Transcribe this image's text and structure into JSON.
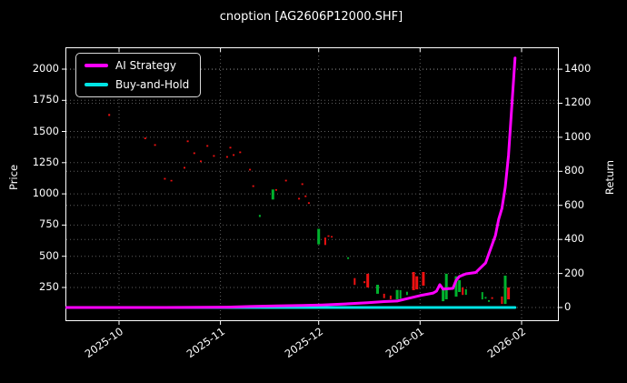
{
  "title": "cnoption [AG2606P12000.SHF]",
  "colors": {
    "background": "#000000",
    "text": "#ffffff",
    "spine": "#ffffff",
    "grid": "#bebebe",
    "strategy": "#ff00ff",
    "buy_hold": "#00e5e5",
    "up": "#00b22d",
    "down": "#ee1111"
  },
  "legend": {
    "items": [
      {
        "label": "AI Strategy",
        "color": "#ff00ff"
      },
      {
        "label": "Buy-and-Hold",
        "color": "#00e5e5"
      }
    ]
  },
  "axes": {
    "left_label": "Price",
    "right_label": "Return"
  },
  "chart_data": {
    "type": "line",
    "title": "cnoption [AG2606P12000.SHF]",
    "grid": true,
    "legend_position": "upper left",
    "x_axis": {
      "tick_labels": [
        "2025-10",
        "2025-11",
        "2025-12",
        "2026-01",
        "2026-02"
      ],
      "tick_dates": [
        "2025-10-01",
        "2025-11-01",
        "2025-12-01",
        "2026-01-01",
        "2026-02-01"
      ],
      "range": [
        "2025-09-15",
        "2026-02-12"
      ]
    },
    "y_left": {
      "label": "Price",
      "ticks": [
        250,
        500,
        750,
        1000,
        1250,
        1500,
        1750,
        2000
      ],
      "range": [
        -12,
        2170
      ]
    },
    "y_right": {
      "label": "Return",
      "ticks": [
        0,
        200,
        400,
        600,
        800,
        1000,
        1200,
        1400
      ],
      "range": [
        -80,
        1525
      ]
    },
    "series": [
      {
        "name": "AI Strategy",
        "axis": "right",
        "color": "#ff00ff",
        "points": [
          [
            "2025-09-15",
            0
          ],
          [
            "2025-10-15",
            0
          ],
          [
            "2025-11-03",
            2
          ],
          [
            "2025-11-10",
            6
          ],
          [
            "2025-11-18",
            9
          ],
          [
            "2025-11-26",
            12
          ],
          [
            "2025-12-02",
            15
          ],
          [
            "2025-12-09",
            21
          ],
          [
            "2025-12-16",
            28
          ],
          [
            "2025-12-21",
            35
          ],
          [
            "2025-12-25",
            38
          ],
          [
            "2025-12-28",
            52
          ],
          [
            "2026-01-01",
            70
          ],
          [
            "2026-01-05",
            85
          ],
          [
            "2026-01-06",
            96
          ],
          [
            "2026-01-07",
            134
          ],
          [
            "2026-01-08",
            108
          ],
          [
            "2026-01-11",
            112
          ],
          [
            "2026-01-12",
            160
          ],
          [
            "2026-01-13",
            182
          ],
          [
            "2026-01-15",
            198
          ],
          [
            "2026-01-18",
            206
          ],
          [
            "2026-01-19",
            225
          ],
          [
            "2026-01-21",
            262
          ],
          [
            "2026-01-22",
            316
          ],
          [
            "2026-01-24",
            423
          ],
          [
            "2026-01-25",
            519
          ],
          [
            "2026-01-26",
            583
          ],
          [
            "2026-01-27",
            706
          ],
          [
            "2026-01-28",
            893
          ],
          [
            "2026-01-29",
            1180
          ],
          [
            "2026-01-30",
            1466
          ]
        ]
      },
      {
        "name": "Buy-and-Hold",
        "axis": "right",
        "color": "#00e5e5",
        "points": [
          [
            "2025-09-15",
            0
          ],
          [
            "2026-01-30",
            0
          ]
        ]
      }
    ],
    "candles": [
      [
        "2025-09-28",
        1625,
        1640,
        "d"
      ],
      [
        "2025-10-09",
        1438,
        1452,
        "d"
      ],
      [
        "2025-10-12",
        1385,
        1398,
        "d"
      ],
      [
        "2025-10-15",
        1115,
        1128,
        "d"
      ],
      [
        "2025-10-17",
        1100,
        1112,
        "d"
      ],
      [
        "2025-10-21",
        1203,
        1216,
        "d"
      ],
      [
        "2025-10-22",
        1415,
        1428,
        "d"
      ],
      [
        "2025-10-24",
        1320,
        1333,
        "d"
      ],
      [
        "2025-10-26",
        1255,
        1268,
        "d"
      ],
      [
        "2025-10-28",
        1378,
        1391,
        "d"
      ],
      [
        "2025-10-30",
        1298,
        1311,
        "d"
      ],
      [
        "2025-11-03",
        1290,
        1303,
        "d"
      ],
      [
        "2025-11-04",
        1364,
        1377,
        "d"
      ],
      [
        "2025-11-05",
        1305,
        1318,
        "d"
      ],
      [
        "2025-11-07",
        1327,
        1340,
        "d"
      ],
      [
        "2025-11-10",
        1188,
        1201,
        "d"
      ],
      [
        "2025-11-11",
        1056,
        1069,
        "d"
      ],
      [
        "2025-11-13",
        815,
        832,
        "u"
      ],
      [
        "2025-11-17",
        955,
        1035,
        "u"
      ],
      [
        "2025-11-18",
        1025,
        1038,
        "d"
      ],
      [
        "2025-11-21",
        1100,
        1113,
        "d"
      ],
      [
        "2025-11-25",
        955,
        968,
        "d"
      ],
      [
        "2025-11-26",
        1072,
        1085,
        "d"
      ],
      [
        "2025-11-27",
        975,
        988,
        "d"
      ],
      [
        "2025-11-28",
        920,
        933,
        "d"
      ],
      [
        "2025-12-01",
        595,
        720,
        "u"
      ],
      [
        "2025-12-03",
        590,
        650,
        "d"
      ],
      [
        "2025-12-04",
        658,
        668,
        "d"
      ],
      [
        "2025-12-05",
        652,
        662,
        "d"
      ],
      [
        "2025-12-10",
        478,
        492,
        "u"
      ],
      [
        "2025-12-12",
        270,
        325,
        "d"
      ],
      [
        "2025-12-15",
        285,
        300,
        "d"
      ],
      [
        "2025-12-16",
        250,
        360,
        "d"
      ],
      [
        "2025-12-19",
        200,
        272,
        "u"
      ],
      [
        "2025-12-21",
        165,
        200,
        "d"
      ],
      [
        "2025-12-23",
        155,
        185,
        "d"
      ],
      [
        "2025-12-25",
        155,
        230,
        "u"
      ],
      [
        "2025-12-26",
        160,
        228,
        "u"
      ],
      [
        "2025-12-28",
        190,
        216,
        "u"
      ],
      [
        "2025-12-30",
        228,
        374,
        "d"
      ],
      [
        "2025-12-31",
        235,
        340,
        "d"
      ],
      [
        "2026-01-02",
        265,
        374,
        "d"
      ],
      [
        "2026-01-08",
        140,
        235,
        "u"
      ],
      [
        "2026-01-09",
        155,
        360,
        "u"
      ],
      [
        "2026-01-12",
        177,
        340,
        "u"
      ],
      [
        "2026-01-13",
        213,
        308,
        "u"
      ],
      [
        "2026-01-14",
        190,
        250,
        "d"
      ],
      [
        "2026-01-15",
        191,
        236,
        "u"
      ],
      [
        "2026-01-20",
        155,
        213,
        "u"
      ],
      [
        "2026-01-21",
        160,
        174,
        "u"
      ],
      [
        "2026-01-22",
        135,
        148,
        "u"
      ],
      [
        "2026-01-23",
        158,
        172,
        "d"
      ],
      [
        "2026-01-26",
        118,
        178,
        "d"
      ],
      [
        "2026-01-27",
        118,
        345,
        "u"
      ],
      [
        "2026-01-28",
        155,
        250,
        "d"
      ]
    ]
  }
}
